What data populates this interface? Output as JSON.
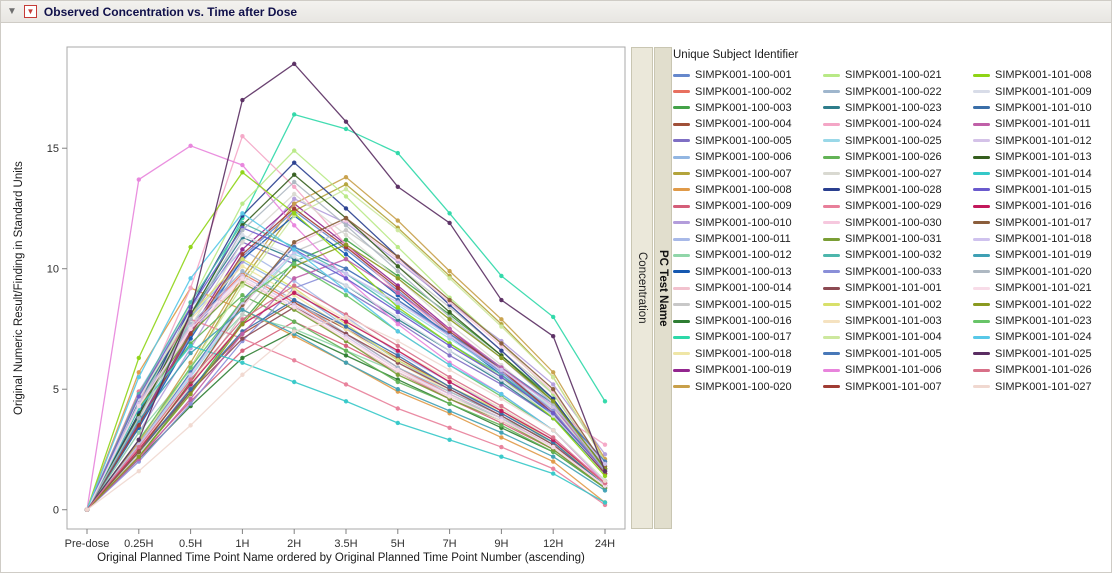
{
  "window": {
    "title": "Observed Concentration vs. Time after Dose"
  },
  "icons": {
    "disclosure": "▼",
    "red_triangle": "▼"
  },
  "group": {
    "variable": "PC Test Name",
    "level": "Concentration"
  },
  "legend": {
    "title": "Unique Subject Identifier"
  },
  "chart_data": {
    "type": "line",
    "title": "Observed Concentration vs. Time after Dose",
    "xlabel": "Original Planned Time Point Name ordered by Original Planned Time Point Number (ascending)",
    "ylabel": "Original Numeric Result/Finding in Standard Units",
    "categories": [
      "Pre-dose",
      "0.25H",
      "0.5H",
      "1H",
      "2H",
      "3.5H",
      "5H",
      "7H",
      "9H",
      "12H",
      "24H"
    ],
    "yticks": [
      0,
      5,
      10,
      15
    ],
    "ylim": [
      -0.8,
      19.2
    ],
    "grid": false,
    "legend_position": "right",
    "series": [
      {
        "name": "SIMPK001-100-001",
        "color": "#6688cc",
        "values": [
          0,
          3.5,
          7.2,
          10.5,
          12.4,
          10.8,
          9.1,
          7.3,
          5.7,
          4.0,
          1.5
        ]
      },
      {
        "name": "SIMPK001-100-002",
        "color": "#e8705f",
        "values": [
          0,
          4.4,
          7.6,
          9.8,
          8.6,
          7.3,
          5.9,
          4.8,
          3.8,
          2.6,
          1.0
        ]
      },
      {
        "name": "SIMPK001-100-003",
        "color": "#44a248",
        "values": [
          0,
          2.2,
          4.9,
          7.8,
          10.3,
          11.2,
          9.7,
          8.1,
          6.4,
          4.6,
          1.7
        ]
      },
      {
        "name": "SIMPK001-100-004",
        "color": "#a05038",
        "values": [
          0,
          2.4,
          5.0,
          7.3,
          8.6,
          7.5,
          6.3,
          5.1,
          4.0,
          2.8,
          1.0
        ]
      },
      {
        "name": "SIMPK001-100-005",
        "color": "#7f6fc4",
        "values": [
          0,
          4.4,
          8.0,
          11.1,
          10.2,
          9.1,
          7.8,
          6.4,
          5.2,
          3.8,
          1.6
        ]
      },
      {
        "name": "SIMPK001-100-006",
        "color": "#92b6e2",
        "values": [
          0,
          4.6,
          8.0,
          10.3,
          9.1,
          7.6,
          6.2,
          5.0,
          4.0,
          2.8,
          1.0
        ]
      },
      {
        "name": "SIMPK001-100-007",
        "color": "#b3a43b",
        "values": [
          0,
          2.7,
          5.9,
          9.5,
          12.4,
          13.5,
          11.7,
          9.7,
          7.7,
          5.5,
          2.0
        ]
      },
      {
        "name": "SIMPK001-100-008",
        "color": "#e09a48",
        "values": [
          0,
          5.7,
          9.2,
          8.3,
          7.2,
          6.1,
          4.9,
          4.0,
          3.0,
          2.0,
          0.3
        ]
      },
      {
        "name": "SIMPK001-100-009",
        "color": "#d45e78",
        "values": [
          0,
          2.2,
          4.5,
          6.6,
          7.8,
          6.8,
          5.7,
          4.6,
          3.6,
          2.5,
          0.9
        ]
      },
      {
        "name": "SIMPK001-100-010",
        "color": "#b39ddb",
        "values": [
          0,
          3.2,
          6.7,
          10.3,
          12.9,
          11.9,
          10.3,
          8.6,
          7.0,
          5.2,
          2.3
        ]
      },
      {
        "name": "SIMPK001-100-011",
        "color": "#a8b9e8",
        "values": [
          0,
          4.9,
          8.4,
          10.8,
          9.5,
          8.0,
          6.5,
          5.3,
          4.2,
          2.9,
          1.1
        ]
      },
      {
        "name": "SIMPK001-100-012",
        "color": "#90d6a9",
        "values": [
          0,
          3.2,
          5.8,
          8.1,
          7.5,
          6.6,
          5.7,
          4.7,
          3.8,
          2.8,
          1.1
        ]
      },
      {
        "name": "SIMPK001-100-013",
        "color": "#1558b0",
        "values": [
          0,
          3.4,
          7.1,
          10.4,
          12.2,
          10.6,
          8.9,
          7.2,
          5.6,
          3.9,
          1.5
        ]
      },
      {
        "name": "SIMPK001-100-014",
        "color": "#f2c2ce",
        "values": [
          0,
          4.3,
          7.4,
          9.5,
          8.4,
          7.0,
          5.7,
          4.7,
          3.7,
          2.6,
          1.0
        ]
      },
      {
        "name": "SIMPK001-100-015",
        "color": "#c8c8c8",
        "values": [
          0,
          2.3,
          5.1,
          8.1,
          10.7,
          11.6,
          10.1,
          8.4,
          6.6,
          4.8,
          1.7
        ]
      },
      {
        "name": "SIMPK001-100-016",
        "color": "#2e7d32",
        "values": [
          0,
          2.1,
          4.3,
          6.3,
          7.4,
          6.4,
          5.4,
          4.4,
          3.4,
          2.4,
          0.9
        ]
      },
      {
        "name": "SIMPK001-100-017",
        "color": "#2dd8a8",
        "values": [
          0,
          3.5,
          7.9,
          12.1,
          16.4,
          15.8,
          14.8,
          12.3,
          9.7,
          8.0,
          4.5
        ]
      },
      {
        "name": "SIMPK001-100-018",
        "color": "#efe6a6",
        "values": [
          0,
          4.5,
          7.9,
          10.1,
          8.9,
          7.5,
          6.1,
          4.9,
          3.9,
          2.7,
          1.0
        ]
      },
      {
        "name": "SIMPK001-100-019",
        "color": "#93268f",
        "values": [
          0,
          3.6,
          7.4,
          10.8,
          12.7,
          11.0,
          9.3,
          7.5,
          5.8,
          4.1,
          1.5
        ]
      },
      {
        "name": "SIMPK001-100-020",
        "color": "#c8a04a",
        "values": [
          0,
          2.8,
          6.1,
          9.7,
          12.7,
          13.8,
          12.0,
          9.9,
          7.9,
          5.7,
          2.1
        ]
      },
      {
        "name": "SIMPK001-100-021",
        "color": "#b8e986",
        "values": [
          0,
          4.2,
          8.6,
          12.7,
          14.9,
          13.0,
          10.9,
          8.8,
          6.9,
          4.8,
          1.8
        ]
      },
      {
        "name": "SIMPK001-100-022",
        "color": "#9fb6cd",
        "values": [
          0,
          4.5,
          7.7,
          9.9,
          8.7,
          7.3,
          5.9,
          4.9,
          3.9,
          2.7,
          1.0
        ]
      },
      {
        "name": "SIMPK001-100-023",
        "color": "#2e7d8b",
        "values": [
          0,
          4.5,
          8.1,
          11.3,
          10.4,
          9.3,
          7.9,
          6.6,
          5.3,
          3.8,
          1.6
        ]
      },
      {
        "name": "SIMPK001-100-024",
        "color": "#f4a6c6",
        "values": [
          0,
          4.4,
          9.2,
          15.5,
          13.4,
          11.0,
          9.0,
          7.3,
          5.8,
          4.1,
          2.7
        ]
      },
      {
        "name": "SIMPK001-100-025",
        "color": "#9ad8e8",
        "values": [
          0,
          2.7,
          5.5,
          8.5,
          10.6,
          9.8,
          8.5,
          7.1,
          5.7,
          4.2,
          1.9
        ]
      },
      {
        "name": "SIMPK001-100-026",
        "color": "#63b356",
        "values": [
          0,
          4.0,
          6.9,
          8.9,
          7.8,
          6.6,
          5.3,
          4.4,
          3.5,
          2.4,
          0.9
        ]
      },
      {
        "name": "SIMPK001-100-027",
        "color": "#d9d9d1",
        "values": [
          0,
          3.7,
          7.6,
          11.1,
          13.1,
          11.4,
          9.6,
          7.7,
          6.0,
          4.2,
          1.6
        ]
      },
      {
        "name": "SIMPK001-100-028",
        "color": "#2a3f8f",
        "values": [
          0,
          4.0,
          8.4,
          12.2,
          14.4,
          12.5,
          10.5,
          8.5,
          6.6,
          4.6,
          1.7
        ]
      },
      {
        "name": "SIMPK001-100-029",
        "color": "#e87f9a",
        "values": [
          0,
          4.9,
          7.9,
          7.1,
          6.2,
          5.2,
          4.2,
          3.4,
          2.6,
          1.7,
          0.2
        ]
      },
      {
        "name": "SIMPK001-100-030",
        "color": "#f6c8de",
        "values": [
          0,
          2.4,
          5.3,
          8.4,
          11.0,
          12.0,
          10.4,
          8.6,
          6.8,
          4.9,
          1.8
        ]
      },
      {
        "name": "SIMPK001-100-031",
        "color": "#7a9e35",
        "values": [
          0,
          4.2,
          7.3,
          9.4,
          8.3,
          7.0,
          5.6,
          4.6,
          3.7,
          2.5,
          0.9
        ]
      },
      {
        "name": "SIMPK001-100-032",
        "color": "#4db6ac",
        "values": [
          0,
          4.8,
          8.6,
          11.9,
          10.9,
          9.8,
          8.3,
          6.9,
          5.6,
          4.0,
          1.7
        ]
      },
      {
        "name": "SIMPK001-100-033",
        "color": "#8a8fd8",
        "values": [
          0,
          2.0,
          4.4,
          7.0,
          9.2,
          10.0,
          8.7,
          7.2,
          5.7,
          4.1,
          1.5
        ]
      },
      {
        "name": "SIMPK001-101-001",
        "color": "#8c4a52",
        "values": [
          0,
          2.4,
          4.9,
          7.1,
          8.4,
          7.3,
          6.1,
          5.0,
          3.9,
          2.7,
          1.0
        ]
      },
      {
        "name": "SIMPK001-101-002",
        "color": "#d8e06a",
        "values": [
          0,
          4.7,
          8.1,
          10.4,
          9.2,
          7.7,
          6.2,
          5.1,
          4.1,
          2.8,
          1.1
        ]
      },
      {
        "name": "SIMPK001-101-003",
        "color": "#f5e2c0",
        "values": [
          0,
          2.5,
          5.3,
          7.7,
          9.1,
          7.9,
          6.6,
          5.4,
          4.2,
          2.9,
          1.1
        ]
      },
      {
        "name": "SIMPK001-101-004",
        "color": "#cde89e",
        "values": [
          0,
          2.7,
          5.9,
          9.3,
          12.2,
          13.3,
          11.6,
          9.6,
          7.6,
          5.5,
          2.0
        ]
      },
      {
        "name": "SIMPK001-101-005",
        "color": "#4878b8",
        "values": [
          0,
          2.7,
          5.7,
          8.7,
          10.9,
          10.0,
          8.7,
          7.3,
          5.9,
          4.4,
          2.0
        ]
      },
      {
        "name": "SIMPK001-101-006",
        "color": "#e884dc",
        "values": [
          0,
          13.7,
          15.1,
          14.3,
          11.8,
          9.6,
          7.7,
          6.1,
          4.8,
          3.3,
          1.1
        ]
      },
      {
        "name": "SIMPK001-101-007",
        "color": "#a03c34",
        "values": [
          0,
          3.5,
          7.3,
          10.6,
          12.5,
          10.9,
          9.2,
          7.4,
          5.8,
          4.0,
          1.5
        ]
      },
      {
        "name": "SIMPK001-101-008",
        "color": "#8fd415",
        "values": [
          0,
          6.3,
          10.9,
          14.0,
          12.3,
          10.4,
          8.4,
          6.9,
          5.5,
          3.8,
          1.4
        ]
      },
      {
        "name": "SIMPK001-101-009",
        "color": "#d8dce8",
        "values": [
          0,
          4.6,
          8.2,
          11.4,
          10.5,
          9.3,
          8.0,
          6.6,
          5.4,
          3.9,
          1.6
        ]
      },
      {
        "name": "SIMPK001-101-010",
        "color": "#3a6ea8",
        "values": [
          0,
          2.4,
          5.0,
          7.4,
          8.7,
          7.6,
          6.4,
          5.1,
          4.0,
          2.8,
          1.0
        ]
      },
      {
        "name": "SIMPK001-101-011",
        "color": "#c060a8",
        "values": [
          0,
          2.1,
          4.6,
          7.3,
          9.6,
          10.4,
          9.0,
          7.5,
          5.9,
          4.3,
          1.6
        ]
      },
      {
        "name": "SIMPK001-101-012",
        "color": "#d4c2e8",
        "values": [
          0,
          4.4,
          7.6,
          9.7,
          8.5,
          7.2,
          5.8,
          4.8,
          3.8,
          2.6,
          1.0
        ]
      },
      {
        "name": "SIMPK001-101-013",
        "color": "#355e1e",
        "values": [
          0,
          3.9,
          8.1,
          11.8,
          13.9,
          12.1,
          10.1,
          8.2,
          6.4,
          4.5,
          1.7
        ]
      },
      {
        "name": "SIMPK001-101-014",
        "color": "#35c8c8",
        "values": [
          0,
          4.2,
          6.8,
          6.1,
          5.3,
          4.5,
          3.6,
          2.9,
          2.2,
          1.5,
          0.3
        ]
      },
      {
        "name": "SIMPK001-101-015",
        "color": "#6a5acd",
        "values": [
          0,
          4.7,
          8.4,
          11.7,
          10.8,
          9.6,
          8.2,
          6.8,
          5.5,
          4.0,
          1.6
        ]
      },
      {
        "name": "SIMPK001-101-016",
        "color": "#c2185b",
        "values": [
          0,
          2.5,
          5.2,
          7.7,
          9.0,
          7.8,
          6.6,
          5.3,
          4.1,
          2.9,
          1.1
        ]
      },
      {
        "name": "SIMPK001-101-017",
        "color": "#8b5e3c",
        "values": [
          0,
          2.4,
          5.3,
          8.5,
          11.1,
          12.1,
          10.5,
          8.7,
          6.9,
          5.0,
          1.8
        ]
      },
      {
        "name": "SIMPK001-101-018",
        "color": "#cfc2ee",
        "values": [
          0,
          2.7,
          5.6,
          8.6,
          10.7,
          9.8,
          8.6,
          7.2,
          5.8,
          4.3,
          1.9
        ]
      },
      {
        "name": "SIMPK001-101-019",
        "color": "#3fa0b4",
        "values": [
          0,
          3.7,
          6.5,
          8.3,
          7.3,
          6.1,
          5.0,
          4.1,
          3.2,
          2.2,
          0.8
        ]
      },
      {
        "name": "SIMPK001-101-020",
        "color": "#aeb8c2",
        "values": [
          0,
          3.8,
          7.9,
          11.6,
          13.6,
          11.8,
          9.9,
          8.0,
          6.3,
          4.4,
          1.6
        ]
      },
      {
        "name": "SIMPK001-101-021",
        "color": "#f8dce8",
        "values": [
          0,
          4.3,
          7.5,
          9.6,
          8.4,
          7.1,
          5.8,
          4.7,
          3.7,
          2.6,
          1.0
        ]
      },
      {
        "name": "SIMPK001-101-022",
        "color": "#8a9a20",
        "values": [
          0,
          2.2,
          4.8,
          7.7,
          10.1,
          11.0,
          9.6,
          7.9,
          6.3,
          4.5,
          1.7
        ]
      },
      {
        "name": "SIMPK001-101-023",
        "color": "#68c468",
        "values": [
          0,
          2.9,
          5.9,
          8.7,
          10.2,
          8.9,
          7.4,
          6.0,
          4.7,
          3.3,
          1.2
        ]
      },
      {
        "name": "SIMPK001-101-024",
        "color": "#58c8e8",
        "values": [
          0,
          5.5,
          9.6,
          12.3,
          10.8,
          9.1,
          7.4,
          6.0,
          4.8,
          3.3,
          1.2
        ]
      },
      {
        "name": "SIMPK001-101-025",
        "color": "#5a2d62",
        "values": [
          0,
          2.9,
          8.2,
          17.0,
          18.5,
          16.1,
          13.4,
          11.9,
          8.7,
          7.2,
          1.6
        ]
      },
      {
        "name": "SIMPK001-101-026",
        "color": "#d87088",
        "values": [
          0,
          2.6,
          5.4,
          7.9,
          9.3,
          8.1,
          6.8,
          5.5,
          4.3,
          3.0,
          1.1
        ]
      },
      {
        "name": "SIMPK001-101-027",
        "color": "#f0d8d0",
        "values": [
          0,
          1.6,
          3.5,
          5.6,
          7.4,
          8.0,
          7.0,
          5.8,
          4.6,
          3.3,
          1.2
        ]
      }
    ]
  }
}
